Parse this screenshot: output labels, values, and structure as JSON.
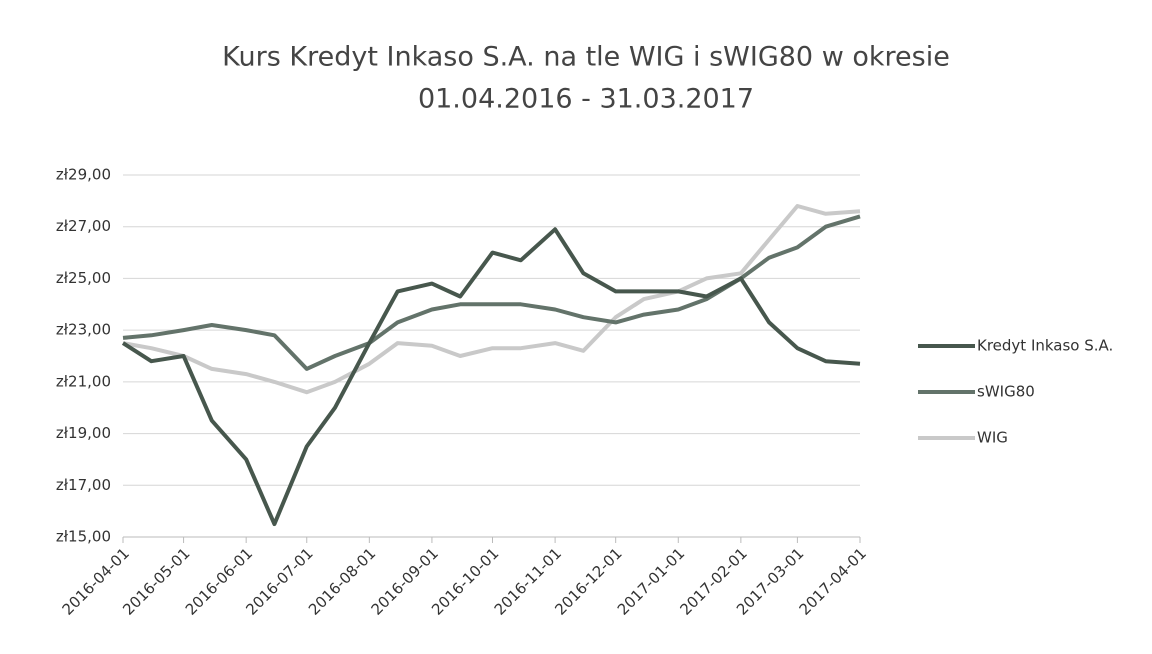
{
  "chart_data": {
    "type": "line",
    "title": [
      "Kurs Kredyt Inkaso S.A. na tle WIG i sWIG80 w okresie",
      "01.04.2016 - 31.03.2017"
    ],
    "x": [
      "2016-04-01",
      "2016-04-15",
      "2016-05-01",
      "2016-05-15",
      "2016-06-01",
      "2016-06-15",
      "2016-07-01",
      "2016-07-15",
      "2016-08-01",
      "2016-08-15",
      "2016-09-01",
      "2016-09-15",
      "2016-10-01",
      "2016-10-15",
      "2016-11-01",
      "2016-11-15",
      "2016-12-01",
      "2016-12-15",
      "2017-01-01",
      "2017-01-15",
      "2017-02-01",
      "2017-02-15",
      "2017-03-01",
      "2017-03-15",
      "2017-04-01"
    ],
    "series": [
      {
        "name": "Kredyt Inkaso S.A.",
        "color": "#47574d",
        "values": [
          22.5,
          21.8,
          22,
          19.5,
          18,
          15.5,
          18.5,
          20,
          22.5,
          24.5,
          24.8,
          24.3,
          26,
          25.7,
          26.9,
          25.2,
          24.5,
          24.5,
          24.5,
          24.3,
          25,
          23.3,
          22.3,
          21.8,
          21.7
        ]
      },
      {
        "name": "sWIG80",
        "color": "#63736a",
        "values": [
          22.7,
          22.8,
          23,
          23.2,
          23,
          22.8,
          21.5,
          22,
          22.5,
          23.3,
          23.8,
          24,
          24,
          24,
          23.8,
          23.5,
          23.3,
          23.6,
          23.8,
          24.2,
          25,
          25.8,
          26.2,
          27,
          27.4
        ]
      },
      {
        "name": "WIG",
        "color": "#c9c9c9",
        "values": [
          22.5,
          22.3,
          22,
          21.5,
          21.3,
          21,
          20.6,
          21,
          21.7,
          22.5,
          22.4,
          22,
          22.3,
          22.3,
          22.5,
          22.2,
          23.5,
          24.2,
          24.5,
          25,
          25.2,
          26.5,
          27.8,
          27.5,
          27.6
        ]
      }
    ],
    "xlim": [
      "2016-04-01",
      "2017-04-01"
    ],
    "xticks": [
      "2016-04-01",
      "2016-05-01",
      "2016-06-01",
      "2016-07-01",
      "2016-08-01",
      "2016-09-01",
      "2016-10-01",
      "2016-11-01",
      "2016-12-01",
      "2017-01-01",
      "2017-02-01",
      "2017-03-01",
      "2017-04-01"
    ],
    "ylim": [
      15,
      29
    ],
    "yticks": [
      {
        "value": 15,
        "label": "zł15,00"
      },
      {
        "value": 17,
        "label": "zł17,00"
      },
      {
        "value": 19,
        "label": "zł19,00"
      },
      {
        "value": 21,
        "label": "zł21,00"
      },
      {
        "value": 23,
        "label": "zł23,00"
      },
      {
        "value": 25,
        "label": "zł25,00"
      },
      {
        "value": 27,
        "label": "zł27,00"
      },
      {
        "value": 29,
        "label": "zł29,00"
      }
    ],
    "grid": true,
    "legend": "right"
  }
}
